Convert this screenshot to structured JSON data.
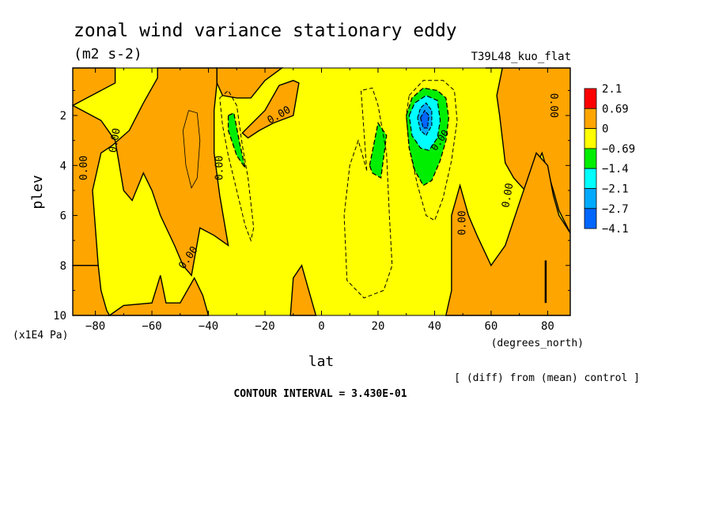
{
  "chart_data": {
    "type": "heatmap",
    "title": "zonal wind variance stationary eddy",
    "units": "(m2 s-2)",
    "run_id": "T39L48_kuo_flat",
    "xlabel": "lat",
    "x_units": "(degrees_north)",
    "ylabel": "plev",
    "y_units": "(x1E4 Pa)",
    "xlim": [
      -88,
      88
    ],
    "ylim": [
      10,
      0.1
    ],
    "x_ticks": [
      -80,
      -60,
      -40,
      -20,
      0,
      20,
      40,
      60,
      80
    ],
    "y_ticks": [
      2,
      4,
      6,
      8,
      10
    ],
    "contour_interval_text": "CONTOUR INTERVAL = 3.430E-01",
    "diff_note": "[ (diff) from (mean) control ]",
    "contour_labels": [
      "0.00",
      "0.00",
      "0.00",
      "0.00",
      "0.00",
      "0.00",
      "0.00",
      "0.00"
    ],
    "legend": [
      {
        "label": "2.1",
        "color": "#ff0000"
      },
      {
        "label": "0.69",
        "color": "#ffa500"
      },
      {
        "label": "0",
        "color": "#ffff00"
      },
      {
        "label": "-0.69",
        "color": "#00ee00"
      },
      {
        "label": "-1.4",
        "color": "#00ffff"
      },
      {
        "label": "-2.1",
        "color": "#00aaff"
      },
      {
        "label": "-2.7",
        "color": "#0066ff"
      },
      {
        "label": "-4.1",
        "color": null
      }
    ],
    "regions": [
      {
        "level": "0..0.69",
        "points": [
          [
            -88,
            0.1
          ],
          [
            -73,
            0.1
          ],
          [
            -73,
            0.7
          ],
          [
            -88,
            1.6
          ]
        ]
      },
      {
        "level": "0..0.69",
        "points": [
          [
            -88,
            1.6
          ],
          [
            -78,
            2.2
          ],
          [
            -73,
            3
          ],
          [
            -70,
            5
          ],
          [
            -67,
            5.4
          ],
          [
            -63,
            4.3
          ],
          [
            -60,
            5
          ],
          [
            -57,
            6
          ],
          [
            -52,
            7.2
          ],
          [
            -49,
            8
          ],
          [
            -46,
            8.4
          ],
          [
            -43,
            6.5
          ],
          [
            -38,
            6.8
          ],
          [
            -33,
            7.2
          ],
          [
            -36,
            5.2
          ],
          [
            -38,
            3.5
          ],
          [
            -38,
            1.8
          ],
          [
            -37,
            0.7
          ],
          [
            -37,
            0.1
          ],
          [
            -58,
            0.1
          ],
          [
            -58,
            0.5
          ],
          [
            -63,
            1.5
          ],
          [
            -68,
            2.6
          ],
          [
            -74,
            3.2
          ],
          [
            -78,
            3.5
          ],
          [
            -81,
            5
          ],
          [
            -79,
            8
          ],
          [
            -88,
            8
          ]
        ]
      },
      {
        "level": "0..0.69",
        "points": [
          [
            -88,
            8
          ],
          [
            -79,
            8
          ],
          [
            -78,
            9
          ],
          [
            -76,
            9.8
          ],
          [
            -75,
            10
          ],
          [
            -88,
            10
          ]
        ]
      },
      {
        "level": "0..0.69",
        "points": [
          [
            -75,
            10
          ],
          [
            -70,
            9.6
          ],
          [
            -60,
            9.5
          ],
          [
            -57,
            8.4
          ],
          [
            -55,
            9.5
          ],
          [
            -50,
            9.5
          ],
          [
            -45,
            8.5
          ],
          [
            -42,
            9.2
          ],
          [
            -40,
            10
          ]
        ]
      },
      {
        "level": "0..0.69",
        "points": [
          [
            -37,
            0.1
          ],
          [
            -20,
            0.1
          ],
          [
            -14,
            0.1
          ],
          [
            -20,
            0.6
          ],
          [
            -25,
            1.3
          ],
          [
            -30,
            1.3
          ],
          [
            -35,
            1.2
          ],
          [
            -37,
            0.7
          ]
        ]
      },
      {
        "level": "0..0.69",
        "points": [
          [
            -28,
            2.7
          ],
          [
            -20,
            1.8
          ],
          [
            -15,
            0.8
          ],
          [
            -10,
            0.6
          ],
          [
            -8,
            0.7
          ],
          [
            -10,
            2
          ],
          [
            -17,
            2.3
          ],
          [
            -22,
            2.6
          ],
          [
            -26,
            2.9
          ]
        ]
      },
      {
        "level": "0..0.69",
        "points": [
          [
            -11,
            10
          ],
          [
            -10,
            8.5
          ],
          [
            -7,
            8
          ],
          [
            -5,
            8.8
          ],
          [
            -2,
            10
          ]
        ]
      },
      {
        "level": "0..0.69",
        "points": [
          [
            58,
            0.1
          ],
          [
            88,
            0.1
          ],
          [
            88,
            6.7
          ],
          [
            84,
            5.8
          ],
          [
            82,
            5
          ],
          [
            78,
            3.5
          ],
          [
            72,
            5
          ],
          [
            68,
            4.5
          ],
          [
            65,
            3.9
          ],
          [
            63,
            2
          ],
          [
            62,
            1.2
          ],
          [
            64,
            0.1
          ]
        ]
      },
      {
        "level": "0..0.69",
        "points": [
          [
            46,
            6
          ],
          [
            49,
            4.8
          ],
          [
            52,
            6
          ],
          [
            55,
            6.8
          ],
          [
            60,
            8
          ],
          [
            65,
            7.2
          ],
          [
            70,
            5.5
          ],
          [
            73,
            4.5
          ],
          [
            76,
            3.5
          ],
          [
            80,
            4
          ],
          [
            82,
            5.2
          ],
          [
            84,
            6
          ],
          [
            88,
            6.7
          ],
          [
            88,
            10
          ],
          [
            44,
            10
          ],
          [
            46,
            9
          ]
        ]
      }
    ],
    "green_patches": [
      {
        "points": [
          [
            -33,
            2
          ],
          [
            -31,
            1.9
          ],
          [
            -29,
            3.1
          ],
          [
            -27,
            4.1
          ],
          [
            -30,
            3.6
          ],
          [
            -33,
            2.6
          ]
        ]
      },
      {
        "points": [
          [
            17,
            4
          ],
          [
            20,
            2.3
          ],
          [
            23,
            2.8
          ],
          [
            21,
            4.5
          ],
          [
            18,
            4.3
          ]
        ]
      },
      {
        "points": [
          [
            30,
            2
          ],
          [
            32,
            1.3
          ],
          [
            36,
            0.9
          ],
          [
            41,
            1
          ],
          [
            44,
            1.3
          ],
          [
            45,
            2.1
          ],
          [
            44,
            3
          ],
          [
            42,
            3.8
          ],
          [
            39,
            4.6
          ],
          [
            36,
            4.8
          ],
          [
            33,
            4.2
          ],
          [
            31,
            3.3
          ]
        ]
      }
    ],
    "cyan_patches": [
      {
        "points": [
          [
            31,
            2
          ],
          [
            33,
            1.5
          ],
          [
            37,
            1.2
          ],
          [
            41,
            1.4
          ],
          [
            42,
            2.2
          ],
          [
            41,
            2.9
          ],
          [
            38,
            3.4
          ],
          [
            35,
            3.3
          ],
          [
            32,
            2.8
          ]
        ]
      }
    ],
    "blue_patches": [
      {
        "points": [
          [
            34,
            2.1
          ],
          [
            35,
            1.7
          ],
          [
            37,
            1.5
          ],
          [
            39,
            1.8
          ],
          [
            39,
            2.4
          ],
          [
            37,
            2.8
          ],
          [
            35,
            2.6
          ]
        ],
        "color": "#00aaff"
      },
      {
        "points": [
          [
            35,
            2.1
          ],
          [
            36.5,
            1.8
          ],
          [
            38,
            2
          ],
          [
            37.5,
            2.5
          ],
          [
            36,
            2.5
          ]
        ],
        "color": "#0066ff"
      }
    ]
  }
}
